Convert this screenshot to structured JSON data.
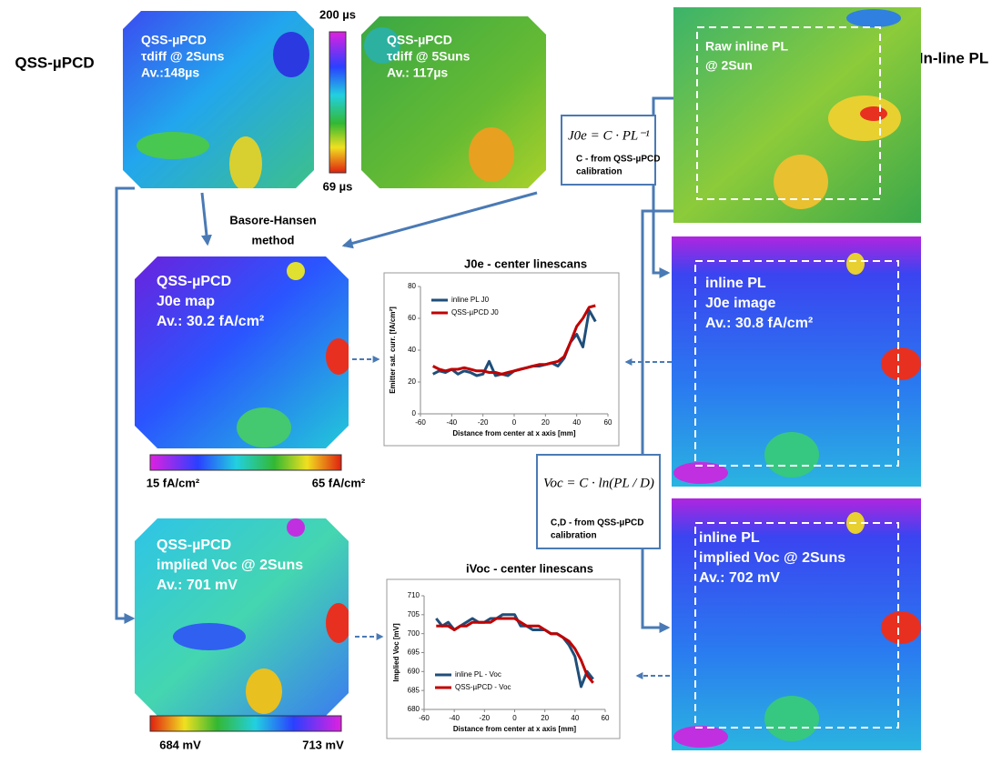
{
  "headings": {
    "left": "QSS-µPCD",
    "right": "In-line PL"
  },
  "qss_maps": [
    {
      "lines": [
        "QSS-µPCD",
        "τdiff @ 2Suns",
        "Av.:148µs"
      ]
    },
    {
      "lines": [
        "QSS-µPCD",
        "τdiff @ 5Suns",
        "Av.: 117µs"
      ]
    },
    {
      "lines": [
        "QSS-µPCD",
        "J0e  map",
        "Av.: 30.2 fA/cm²"
      ]
    },
    {
      "lines": [
        "QSS-µPCD",
        "implied  Voc @ 2Suns",
        "Av.: 701 mV"
      ]
    }
  ],
  "colorbars": [
    {
      "max": "200 µs",
      "min": "69 µs"
    },
    {
      "min": "15 fA/cm²",
      "max": "65 fA/cm²"
    },
    {
      "min": "684 mV",
      "max": "713 mV"
    }
  ],
  "method": [
    "Basore-Hansen",
    "method"
  ],
  "pl_maps": [
    {
      "lines": [
        "Raw inline PL",
        "@ 2Sun"
      ]
    },
    {
      "lines": [
        "inline PL",
        "J0e image",
        "Av.: 30.8 fA/cm²"
      ]
    },
    {
      "lines": [
        "inline PL",
        "implied  Voc @ 2Suns",
        "Av.: 702 mV"
      ]
    }
  ],
  "formulas": [
    {
      "equation": "J0e = C · PL⁻¹",
      "note": [
        "C -  from QSS-µPCD",
        "calibration"
      ]
    },
    {
      "equation": "Voc = C · ln(PL / D)",
      "note": [
        "C,D -  from QSS-µPCD",
        "calibration"
      ]
    }
  ],
  "chart_data": [
    {
      "type": "line",
      "title": "J0e  - center linescans",
      "x_label": "Distance from center at x axis [mm]",
      "y_label": "Emitter sat. curr. [fA/cm²]",
      "x": [
        -52,
        -48,
        -44,
        -40,
        -36,
        -32,
        -28,
        -24,
        -20,
        -16,
        -12,
        -8,
        -4,
        0,
        4,
        8,
        12,
        16,
        20,
        24,
        28,
        32,
        36,
        40,
        44,
        48,
        52
      ],
      "series": [
        {
          "name": "inline PL J0",
          "color": "#1f4e79",
          "values": [
            25,
            27,
            26,
            28,
            25,
            27,
            26,
            24,
            25,
            33,
            24,
            25,
            24,
            27,
            28,
            29,
            30,
            30,
            31,
            32,
            30,
            35,
            45,
            50,
            42,
            65,
            58
          ]
        },
        {
          "name": "QSS-µPCD J0",
          "color": "#c00000",
          "values": [
            30,
            28,
            27,
            28,
            28,
            29,
            28,
            27,
            27,
            26,
            26,
            25,
            26,
            27,
            28,
            29,
            30,
            31,
            31,
            32,
            33,
            36,
            45,
            55,
            60,
            67,
            68
          ]
        }
      ],
      "xlim": [
        -60,
        60
      ],
      "xticks": [
        -60,
        -40,
        -20,
        0,
        20,
        40,
        60
      ],
      "ylim": [
        0,
        80
      ],
      "yticks": [
        0,
        20,
        40,
        60,
        80
      ],
      "legend": "upper left"
    },
    {
      "type": "line",
      "title": "iVoc - center linescans",
      "x_label": "Distance from center at x axis [mm]",
      "y_label": "Implied Voc [mV]",
      "x": [
        -52,
        -48,
        -44,
        -40,
        -36,
        -32,
        -28,
        -24,
        -20,
        -16,
        -12,
        -8,
        -4,
        0,
        4,
        8,
        12,
        16,
        20,
        24,
        28,
        32,
        36,
        40,
        44,
        48,
        52
      ],
      "series": [
        {
          "name": "inline PL - Voc",
          "color": "#1f4e79",
          "values": [
            704,
            702,
            703,
            701,
            702,
            703,
            704,
            703,
            703,
            704,
            704,
            705,
            705,
            705,
            702,
            702,
            701,
            701,
            701,
            700,
            700,
            699,
            697,
            694,
            686,
            690,
            688
          ]
        },
        {
          "name": "QSS-µPCD - Voc",
          "color": "#c00000",
          "values": [
            702,
            702,
            702,
            701,
            702,
            702,
            703,
            703,
            703,
            703,
            704,
            704,
            704,
            704,
            703,
            702,
            702,
            702,
            701,
            700,
            700,
            699,
            698,
            696,
            693,
            689,
            687
          ]
        }
      ],
      "xlim": [
        -60,
        60
      ],
      "xticks": [
        -60,
        -40,
        -20,
        0,
        20,
        40,
        60
      ],
      "ylim": [
        680,
        710
      ],
      "yticks": [
        680,
        685,
        690,
        695,
        700,
        705,
        710
      ],
      "legend": "lower left"
    }
  ]
}
